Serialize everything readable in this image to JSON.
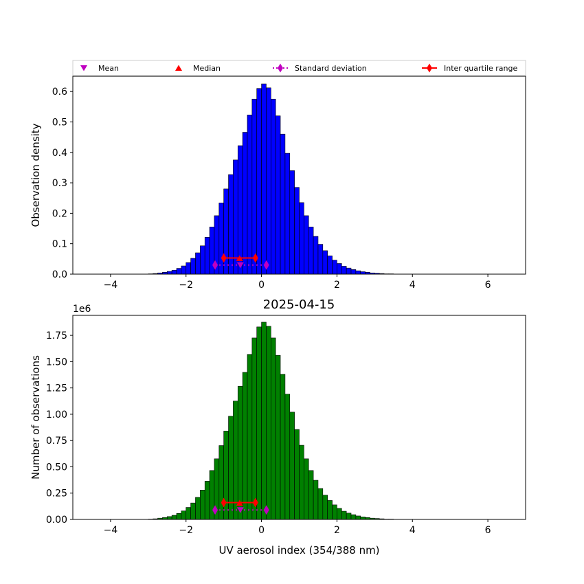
{
  "figure_title": "2025-04-15",
  "legend": {
    "placement": "top",
    "entries": [
      {
        "label": "Mean",
        "marker": "triangle-down",
        "color": "#c000c0"
      },
      {
        "label": "Median",
        "marker": "triangle-up",
        "color": "#ff0000"
      },
      {
        "label": "Standard deviation",
        "marker": "diamond-dotted-line",
        "color": "#c000c0"
      },
      {
        "label": "Inter quartile range",
        "marker": "diamond-solid-line",
        "color": "#ff0000"
      }
    ]
  },
  "chart_data": [
    {
      "type": "bar",
      "bar_color": "#0000ff",
      "xlabel": "",
      "ylabel": "Observation density",
      "xlim": [
        -5,
        7
      ],
      "ylim": [
        0,
        0.65
      ],
      "xticks": [
        -4,
        -2,
        0,
        2,
        4,
        6
      ],
      "yticks": [
        0.0,
        0.1,
        0.2,
        0.3,
        0.4,
        0.5,
        0.6
      ],
      "ytick_labels": [
        "0.0",
        "0.1",
        "0.2",
        "0.3",
        "0.4",
        "0.5",
        "0.6"
      ],
      "grid": false,
      "bin_width": 0.125,
      "bin_start": -3.0,
      "values": [
        0.001,
        0.002,
        0.004,
        0.006,
        0.009,
        0.013,
        0.019,
        0.027,
        0.038,
        0.052,
        0.07,
        0.093,
        0.121,
        0.155,
        0.192,
        0.234,
        0.28,
        0.327,
        0.375,
        0.422,
        0.466,
        0.523,
        0.575,
        0.61,
        0.625,
        0.612,
        0.575,
        0.52,
        0.46,
        0.397,
        0.34,
        0.285,
        0.235,
        0.192,
        0.155,
        0.124,
        0.098,
        0.077,
        0.06,
        0.046,
        0.035,
        0.026,
        0.02,
        0.015,
        0.011,
        0.008,
        0.006,
        0.004,
        0.003,
        0.002,
        0.001,
        0.001
      ],
      "stats": {
        "mean": {
          "x": -0.56,
          "y": 0.03
        },
        "median": {
          "x": -0.58,
          "y": 0.052
        },
        "std_dev": {
          "low": -1.23,
          "high": 0.13,
          "y": 0.03
        },
        "iqr": {
          "low": -1.0,
          "high": -0.16,
          "y": 0.053
        }
      }
    },
    {
      "type": "bar",
      "bar_color": "#008000",
      "xlabel": "UV aerosol index (354/388 nm)",
      "ylabel": "Number of observations",
      "y_offset_label": "1e6",
      "xlim": [
        -5,
        7
      ],
      "ylim": [
        0,
        1.94
      ],
      "xticks": [
        -4,
        -2,
        0,
        2,
        4,
        6
      ],
      "yticks": [
        0.0,
        0.25,
        0.5,
        0.75,
        1.0,
        1.25,
        1.5,
        1.75
      ],
      "ytick_labels": [
        "0.00",
        "0.25",
        "0.50",
        "0.75",
        "1.00",
        "1.25",
        "1.50",
        "1.75"
      ],
      "grid": false,
      "bin_width": 0.125,
      "bin_start": -3.0,
      "values": [
        0.003,
        0.006,
        0.012,
        0.018,
        0.027,
        0.039,
        0.057,
        0.081,
        0.114,
        0.156,
        0.21,
        0.279,
        0.363,
        0.465,
        0.576,
        0.702,
        0.84,
        0.981,
        1.125,
        1.266,
        1.398,
        1.569,
        1.725,
        1.83,
        1.875,
        1.836,
        1.725,
        1.56,
        1.38,
        1.191,
        1.02,
        0.855,
        0.705,
        0.576,
        0.465,
        0.372,
        0.294,
        0.231,
        0.18,
        0.138,
        0.105,
        0.078,
        0.06,
        0.045,
        0.033,
        0.024,
        0.018,
        0.012,
        0.009,
        0.006,
        0.003,
        0.003
      ],
      "stats": {
        "mean": {
          "x": -0.56,
          "y": 0.09
        },
        "median": {
          "x": -0.58,
          "y": 0.155
        },
        "std_dev": {
          "low": -1.23,
          "high": 0.13,
          "y": 0.09
        },
        "iqr": {
          "low": -1.0,
          "high": -0.16,
          "y": 0.16
        }
      }
    }
  ]
}
